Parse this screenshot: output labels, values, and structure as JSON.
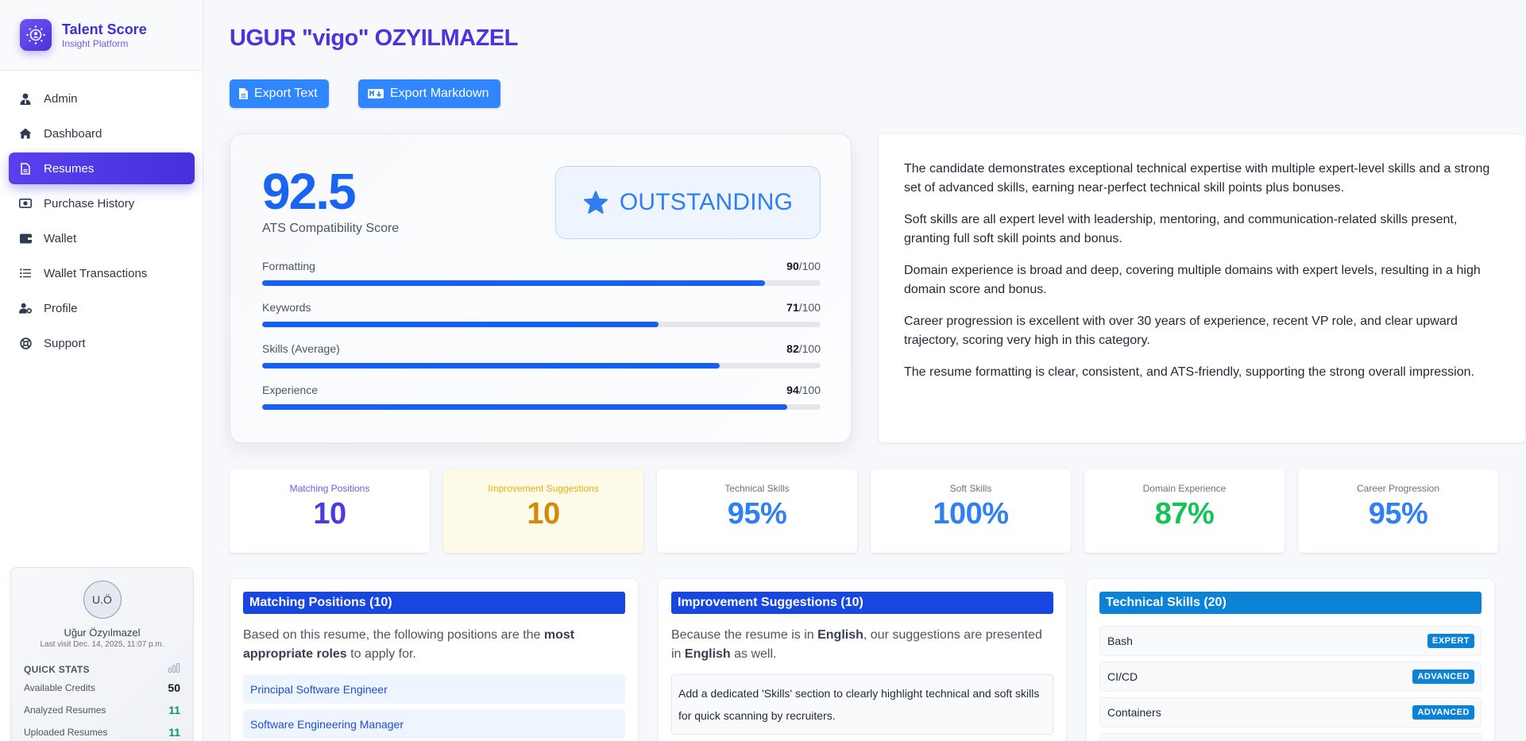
{
  "brand": {
    "title": "Talent Score",
    "subtitle": "Insight Platform"
  },
  "sidebar": {
    "items": [
      {
        "label": "Admin",
        "icon": "user-tie-icon",
        "active": false
      },
      {
        "label": "Dashboard",
        "icon": "home-icon",
        "active": false
      },
      {
        "label": "Resumes",
        "icon": "file-icon",
        "active": true
      },
      {
        "label": "Purchase History",
        "icon": "money-bill-icon",
        "active": false
      },
      {
        "label": "Wallet",
        "icon": "wallet-icon",
        "active": false
      },
      {
        "label": "Wallet Transactions",
        "icon": "list-icon",
        "active": false
      },
      {
        "label": "Profile",
        "icon": "user-gear-icon",
        "active": false
      },
      {
        "label": "Support",
        "icon": "life-ring-icon",
        "active": false
      }
    ],
    "user": {
      "initials": "U.Ö",
      "name": "Uğur Özyılmazel",
      "last_visit": "Last visit Dec. 14, 2025, 11:07 p.m."
    },
    "quick_stats": {
      "title": "QUICK STATS",
      "rows": [
        {
          "label": "Available Credits",
          "value": "50"
        },
        {
          "label": "Analyzed Resumes",
          "value": "11"
        },
        {
          "label": "Uploaded Resumes",
          "value": "11"
        }
      ]
    }
  },
  "page": {
    "title": "UGUR \"vigo\" OZYILMAZEL",
    "buttons": {
      "export_text": "Export Text",
      "export_markdown": "Export Markdown"
    }
  },
  "score": {
    "value": "92.5",
    "label": "ATS Compatibility Score",
    "badge": "OUTSTANDING",
    "metrics": [
      {
        "label": "Formatting",
        "value": "90",
        "max": "/100",
        "pct": 90
      },
      {
        "label": "Keywords",
        "value": "71",
        "max": "/100",
        "pct": 71
      },
      {
        "label": "Skills (Average)",
        "value": "82",
        "max": "/100",
        "pct": 82
      },
      {
        "label": "Experience",
        "value": "94",
        "max": "/100",
        "pct": 94
      }
    ]
  },
  "summary": {
    "paragraphs": [
      "The candidate demonstrates exceptional technical expertise with multiple expert-level skills and a strong set of advanced skills, earning near-perfect technical skill points plus bonuses.",
      "Soft skills are all expert level with leadership, mentoring, and communication-related skills present, granting full soft skill points and bonus.",
      "Domain experience is broad and deep, covering multiple domains with expert levels, resulting in a high domain score and bonus.",
      "Career progression is excellent with over 30 years of experience, recent VP role, and clear upward trajectory, scoring very high in this category.",
      "The resume formatting is clear, consistent, and ATS-friendly, supporting the strong overall impression."
    ]
  },
  "stats": [
    {
      "label": "Matching Positions",
      "value": "10",
      "label_color": "#6a5cf2",
      "value_color": "#4a3ae6",
      "bg": "#ffffff"
    },
    {
      "label": "Improvement Suggestions",
      "value": "10",
      "label_color": "#e7b010",
      "value_color": "#d4890a",
      "bg": "#fefbe8"
    },
    {
      "label": "Technical Skills",
      "value": "95%",
      "label_color": "#6b7280",
      "value_color": "#2f80f5",
      "bg": "#ffffff"
    },
    {
      "label": "Soft Skills",
      "value": "100%",
      "label_color": "#6b7280",
      "value_color": "#2f80f5",
      "bg": "#ffffff"
    },
    {
      "label": "Domain Experience",
      "value": "87%",
      "label_color": "#6b7280",
      "value_color": "#10c456",
      "bg": "#ffffff"
    },
    {
      "label": "Career Progression",
      "value": "95%",
      "label_color": "#6b7280",
      "value_color": "#2f80f5",
      "bg": "#ffffff"
    }
  ],
  "panels": {
    "matching": {
      "title": "Matching Positions (10)",
      "desc_pre": "Based on this resume, the following positions are the ",
      "desc_bold": "most appropriate roles",
      "desc_post": " to apply for.",
      "items": [
        "Principal Software Engineer",
        "Software Engineering Manager"
      ]
    },
    "suggestions": {
      "title": "Improvement Suggestions (10)",
      "desc_1": "Because the resume is in ",
      "desc_bold_1": "English",
      "desc_2": ", our suggestions are presented in ",
      "desc_bold_2": "English",
      "desc_3": " as well.",
      "items": [
        "Add a dedicated 'Skills' section to clearly highlight technical and soft skills for quick scanning by recruiters."
      ]
    },
    "technical": {
      "title": "Technical Skills (20)",
      "items": [
        {
          "name": "Bash",
          "level": "EXPERT"
        },
        {
          "name": "CI/CD",
          "level": "ADVANCED"
        },
        {
          "name": "Containers",
          "level": "ADVANCED"
        },
        {
          "name": "",
          "level": ""
        }
      ]
    }
  },
  "colors": {
    "brand": "#4a34e0",
    "primary_button": "#2f86ff",
    "score_blue": "#1865f2",
    "panel_head_blue": "#1747e0",
    "panel_head_sky": "#0b82d6"
  }
}
